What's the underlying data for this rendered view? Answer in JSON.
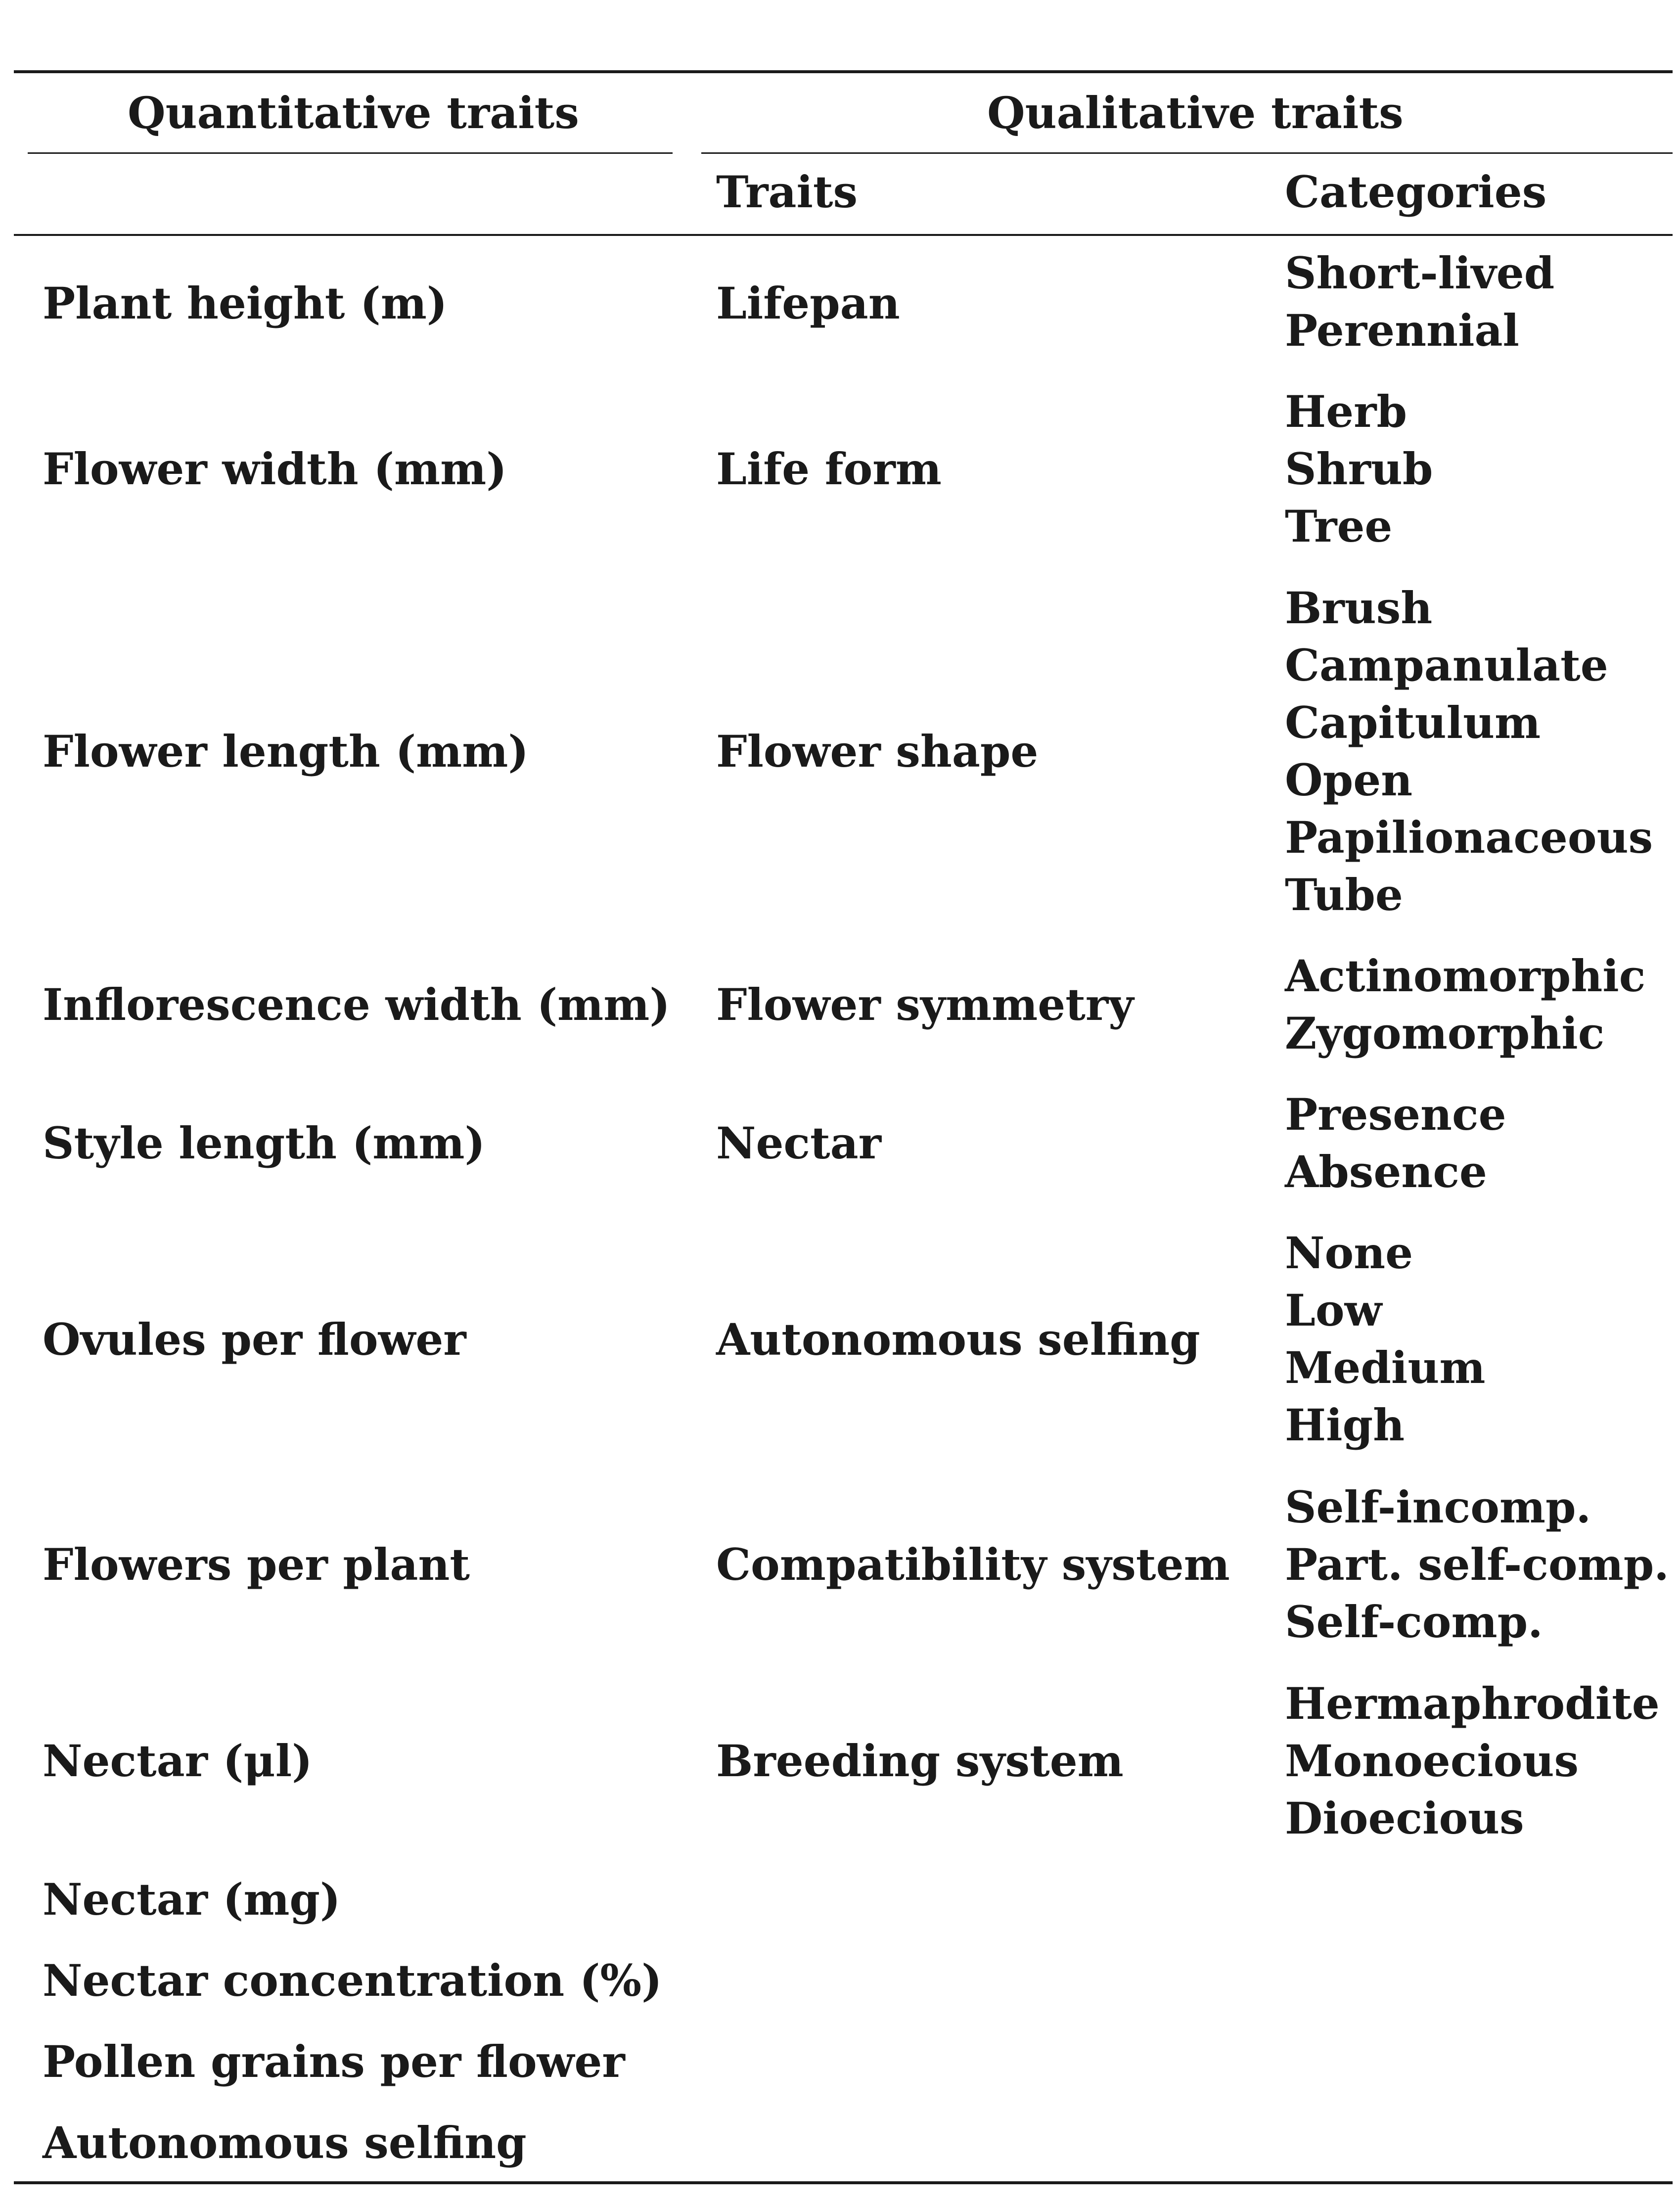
{
  "table": {
    "header": {
      "quantitative": "Quantitative traits",
      "qualitative": "Qualitative traits",
      "traits": "Traits",
      "categories": "Categories"
    },
    "rows": [
      {
        "quantitative": "Plant height (m)",
        "trait": "Lifepan",
        "categories": [
          "Short-lived",
          "Perennial"
        ]
      },
      {
        "quantitative": "Flower width (mm)",
        "trait": "Life form",
        "categories": [
          "Herb",
          "Shrub",
          "Tree"
        ]
      },
      {
        "quantitative": "Flower length (mm)",
        "trait": "Flower shape",
        "categories": [
          "Brush",
          "Campanulate",
          "Capitulum",
          "Open",
          "Papilionaceous",
          "Tube"
        ]
      },
      {
        "quantitative": "Inflorescence width (mm)",
        "trait": "Flower symmetry",
        "categories": [
          "Actinomorphic",
          "Zygomorphic"
        ]
      },
      {
        "quantitative": "Style length (mm)",
        "trait": "Nectar",
        "categories": [
          "Presence",
          "Absence"
        ]
      },
      {
        "quantitative": "Ovules per flower",
        "trait": "Autonomous selfing",
        "categories": [
          "None",
          "Low",
          "Medium",
          "High"
        ]
      },
      {
        "quantitative": "Flowers per plant",
        "trait": "Compatibility system",
        "categories": [
          "Self-incomp.",
          "Part. self-comp.",
          "Self-comp."
        ]
      },
      {
        "quantitative": "Nectar (μl)",
        "trait": "Breeding system",
        "categories": [
          "Hermaphrodite",
          "Monoecious",
          "Dioecious"
        ]
      },
      {
        "quantitative": "Nectar (mg)",
        "trait": "",
        "categories": []
      },
      {
        "quantitative": "Nectar concentration (%)",
        "trait": "",
        "categories": []
      },
      {
        "quantitative": "Pollen grains per flower",
        "trait": "",
        "categories": []
      },
      {
        "quantitative": "Autonomous selfing",
        "trait": "",
        "categories": []
      }
    ]
  }
}
